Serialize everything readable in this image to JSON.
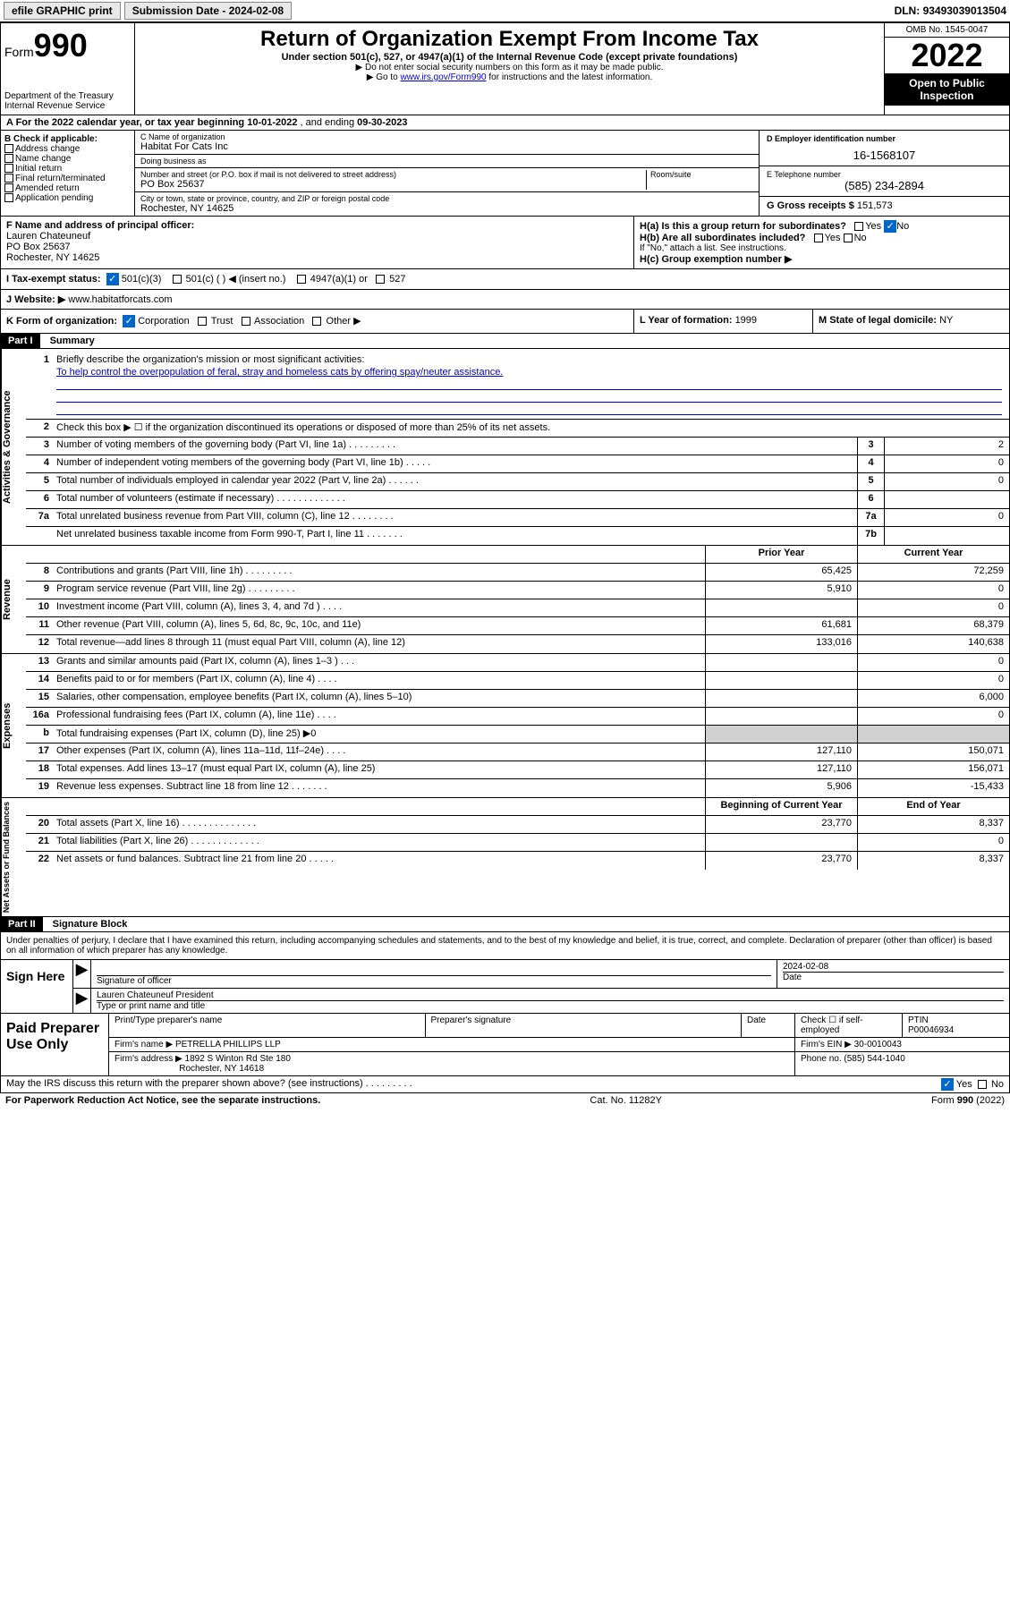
{
  "topbar": {
    "efile": "efile GRAPHIC print",
    "sub_lbl": "Submission Date - ",
    "sub_date": "2024-02-08",
    "dln_lbl": "DLN: ",
    "dln": "93493039013504"
  },
  "header": {
    "form_lbl": "Form",
    "form_no": "990",
    "dept": "Department of the Treasury",
    "irs": "Internal Revenue Service",
    "title": "Return of Organization Exempt From Income Tax",
    "sub": "Under section 501(c), 527, or 4947(a)(1) of the Internal Revenue Code (except private foundations)",
    "note1": "▶ Do not enter social security numbers on this form as it may be made public.",
    "note2_pre": "▶ Go to ",
    "note2_link": "www.irs.gov/Form990",
    "note2_post": " for instructions and the latest information.",
    "omb": "OMB No. 1545-0047",
    "year": "2022",
    "inspect": "Open to Public Inspection"
  },
  "rowA": {
    "text_pre": "A For the 2022 calendar year, or tax year beginning ",
    "begin": "10-01-2022",
    "mid": " , and ending ",
    "end": "09-30-2023"
  },
  "colB": {
    "hdr": "B Check if applicable:",
    "items": [
      "Address change",
      "Name change",
      "Initial return",
      "Final return/terminated",
      "Amended return",
      "Application pending"
    ]
  },
  "colC": {
    "name_lbl": "C Name of organization",
    "name": "Habitat For Cats Inc",
    "dba_lbl": "Doing business as",
    "dba": "",
    "addr_lbl": "Number and street (or P.O. box if mail is not delivered to street address)",
    "room_lbl": "Room/suite",
    "addr": "PO Box 25637",
    "city_lbl": "City or town, state or province, country, and ZIP or foreign postal code",
    "city": "Rochester, NY  14625"
  },
  "colD": {
    "ein_lbl": "D Employer identification number",
    "ein": "16-1568107",
    "tel_lbl": "E Telephone number",
    "tel": "(585) 234-2894",
    "gross_lbl": "G Gross receipts $ ",
    "gross": "151,573"
  },
  "rowF": {
    "lbl": "F Name and address of principal officer:",
    "name": "Lauren Chateuneuf",
    "addr1": "PO Box 25637",
    "addr2": "Rochester, NY  14625"
  },
  "rowH": {
    "ha": "H(a)  Is this a group return for subordinates?",
    "hb": "H(b)  Are all subordinates included?",
    "hb_note": "If \"No,\" attach a list. See instructions.",
    "hc": "H(c)  Group exemption number ▶",
    "yes": "Yes",
    "no": "No"
  },
  "rowI": {
    "lbl": "I   Tax-exempt status:",
    "o1": "501(c)(3)",
    "o2": "501(c) (   ) ◀ (insert no.)",
    "o3": "4947(a)(1) or",
    "o4": "527"
  },
  "rowJ": {
    "lbl": "J   Website: ▶ ",
    "val": "www.habitatforcats.com"
  },
  "rowK": {
    "lbl": "K Form of organization:",
    "opts": [
      "Corporation",
      "Trust",
      "Association",
      "Other ▶"
    ],
    "l_lbl": "L Year of formation: ",
    "l_val": "1999",
    "m_lbl": "M State of legal domicile: ",
    "m_val": "NY"
  },
  "part1": {
    "hdr": "Part I",
    "title": "Summary",
    "q1": "Briefly describe the organization's mission or most significant activities:",
    "mission": "To help control the overpopulation of feral, stray and homeless cats by offering spay/neuter assistance.",
    "q2": "Check this box ▶ ☐  if the organization discontinued its operations or disposed of more than 25% of its net assets.",
    "rows_gov": [
      {
        "n": "3",
        "d": "Number of voting members of the governing body (Part VI, line 1a)   .    .    .    .    .    .    .    .    .",
        "ln": "3",
        "v": "2"
      },
      {
        "n": "4",
        "d": "Number of independent voting members of the governing body (Part VI, line 1b)   .    .    .    .    .",
        "ln": "4",
        "v": "0"
      },
      {
        "n": "5",
        "d": "Total number of individuals employed in calendar year 2022 (Part V, line 2a)   .    .    .    .    .    .",
        "ln": "5",
        "v": "0"
      },
      {
        "n": "6",
        "d": "Total number of volunteers (estimate if necessary)   .    .    .    .    .    .    .    .    .    .    .    .    .",
        "ln": "6",
        "v": ""
      },
      {
        "n": "7a",
        "d": "Total unrelated business revenue from Part VIII, column (C), line 12   .    .    .    .    .    .    .    .",
        "ln": "7a",
        "v": "0"
      },
      {
        "n": "",
        "d": "Net unrelated business taxable income from Form 990-T, Part I, line 11   .    .    .    .    .    .    .",
        "ln": "7b",
        "v": ""
      }
    ],
    "col_prior": "Prior Year",
    "col_curr": "Current Year",
    "rows_rev": [
      {
        "n": "8",
        "d": "Contributions and grants (Part VIII, line 1h)   .    .    .    .    .    .    .    .    .",
        "p": "65,425",
        "c": "72,259"
      },
      {
        "n": "9",
        "d": "Program service revenue (Part VIII, line 2g)   .    .    .    .    .    .    .    .    .",
        "p": "5,910",
        "c": "0"
      },
      {
        "n": "10",
        "d": "Investment income (Part VIII, column (A), lines 3, 4, and 7d )   .    .    .    .",
        "p": "",
        "c": "0"
      },
      {
        "n": "11",
        "d": "Other revenue (Part VIII, column (A), lines 5, 6d, 8c, 9c, 10c, and 11e)",
        "p": "61,681",
        "c": "68,379"
      },
      {
        "n": "12",
        "d": "Total revenue—add lines 8 through 11 (must equal Part VIII, column (A), line 12)",
        "p": "133,016",
        "c": "140,638"
      }
    ],
    "rows_exp": [
      {
        "n": "13",
        "d": "Grants and similar amounts paid (Part IX, column (A), lines 1–3 )   .    .    .",
        "p": "",
        "c": "0"
      },
      {
        "n": "14",
        "d": "Benefits paid to or for members (Part IX, column (A), line 4)   .    .    .    .",
        "p": "",
        "c": "0"
      },
      {
        "n": "15",
        "d": "Salaries, other compensation, employee benefits (Part IX, column (A), lines 5–10)",
        "p": "",
        "c": "6,000"
      },
      {
        "n": "16a",
        "d": "Professional fundraising fees (Part IX, column (A), line 11e)   .    .    .    .",
        "p": "",
        "c": "0"
      },
      {
        "n": "b",
        "d": "Total fundraising expenses (Part IX, column (D), line 25) ▶0",
        "p": "shade",
        "c": "shade"
      },
      {
        "n": "17",
        "d": "Other expenses (Part IX, column (A), lines 11a–11d, 11f–24e)   .    .    .    .",
        "p": "127,110",
        "c": "150,071"
      },
      {
        "n": "18",
        "d": "Total expenses. Add lines 13–17 (must equal Part IX, column (A), line 25)",
        "p": "127,110",
        "c": "156,071"
      },
      {
        "n": "19",
        "d": "Revenue less expenses. Subtract line 18 from line 12  .    .    .    .    .    .    .",
        "p": "5,906",
        "c": "-15,433"
      }
    ],
    "col_bgn": "Beginning of Current Year",
    "col_end": "End of Year",
    "rows_net": [
      {
        "n": "20",
        "d": "Total assets (Part X, line 16)   .    .    .    .    .    .    .    .    .    .    .    .    .    .",
        "p": "23,770",
        "c": "8,337"
      },
      {
        "n": "21",
        "d": "Total liabilities (Part X, line 26)   .    .    .    .    .    .    .    .    .    .    .    .    .",
        "p": "",
        "c": "0"
      },
      {
        "n": "22",
        "d": "Net assets or fund balances. Subtract line 21 from line 20   .    .    .    .    .",
        "p": "23,770",
        "c": "8,337"
      }
    ],
    "vlabels": {
      "gov": "Activities & Governance",
      "rev": "Revenue",
      "exp": "Expenses",
      "net": "Net Assets or Fund Balances"
    }
  },
  "part2": {
    "hdr": "Part II",
    "title": "Signature Block",
    "penalty": "Under penalties of perjury, I declare that I have examined this return, including accompanying schedules and statements, and to the best of my knowledge and belief, it is true, correct, and complete. Declaration of preparer (other than officer) is based on all information of which preparer has any knowledge.",
    "sign_here": "Sign Here",
    "sig_officer_lbl": "Signature of officer",
    "sig_date_lbl": "Date",
    "sig_date": "2024-02-08",
    "officer_name": "Lauren Chateuneuf  President",
    "officer_name_lbl": "Type or print name and title",
    "paid": "Paid Preparer Use Only",
    "prep_name_lbl": "Print/Type preparer's name",
    "prep_sig_lbl": "Preparer's signature",
    "date_lbl": "Date",
    "check_lbl": "Check ☐ if self-employed",
    "ptin_lbl": "PTIN",
    "ptin": "P00046934",
    "firm_name_lbl": "Firm's name    ▶ ",
    "firm_name": "PETRELLA PHILLIPS LLP",
    "firm_ein_lbl": "Firm's EIN ▶ ",
    "firm_ein": "30-0010043",
    "firm_addr_lbl": "Firm's address ▶ ",
    "firm_addr1": "1892 S Winton Rd Ste 180",
    "firm_addr2": "Rochester, NY  14618",
    "phone_lbl": "Phone no. ",
    "phone": "(585) 544-1040",
    "may_irs": "May the IRS discuss this return with the preparer shown above? (see instructions)   .    .    .    .    .    .    .    .    .",
    "yes": "Yes",
    "no": "No"
  },
  "footer": {
    "pra": "For Paperwork Reduction Act Notice, see the separate instructions.",
    "cat": "Cat. No. 11282Y",
    "form": "Form 990 (2022)"
  },
  "colors": {
    "link": "#0000cc",
    "black": "#000000",
    "shade": "#d0d0d0",
    "blue": "#0066cc"
  }
}
